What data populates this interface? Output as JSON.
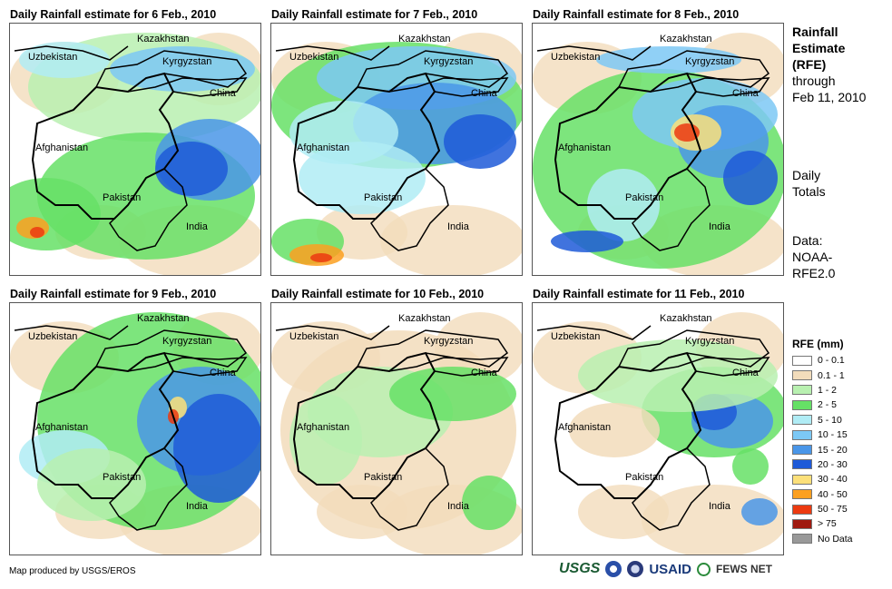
{
  "panels": [
    {
      "title": "Daily Rainfall estimate for 6 Feb., 2010",
      "blob": "b1"
    },
    {
      "title": "Daily Rainfall estimate for 7 Feb., 2010",
      "blob": "b2"
    },
    {
      "title": "Daily Rainfall estimate for 8 Feb., 2010",
      "blob": "b3"
    },
    {
      "title": "Daily Rainfall estimate for 9 Feb., 2010",
      "blob": "b4"
    },
    {
      "title": "Daily Rainfall estimate for 10 Feb., 2010",
      "blob": "b5"
    },
    {
      "title": "Daily Rainfall estimate for 11 Feb., 2010",
      "blob": "b6"
    }
  ],
  "country_labels": {
    "kazakhstan": "Kazakhstan",
    "uzbekistan": "Uzbekistan",
    "kyrgyzstan": "Kyrgyzstan",
    "china": "China",
    "afghanistan": "Afghanistan",
    "pakistan": "Pakistan",
    "india": "India"
  },
  "side": {
    "title_lines": [
      "Rainfall",
      "Estimate",
      "(RFE)"
    ],
    "through_lines": [
      "through",
      "Feb 11, 2010"
    ],
    "totals_lines": [
      "Daily",
      "Totals"
    ],
    "data_lines": [
      "Data:",
      "NOAA-",
      "RFE2.0"
    ]
  },
  "legend": {
    "title": "RFE (mm)",
    "items": [
      {
        "label": "0 - 0.1",
        "color": "#ffffff"
      },
      {
        "label": "0.1 - 1",
        "color": "#f2dcbb"
      },
      {
        "label": "1 - 2",
        "color": "#b8f0b0"
      },
      {
        "label": "2 - 5",
        "color": "#66e066"
      },
      {
        "label": "5 - 10",
        "color": "#b0ecf5"
      },
      {
        "label": "10 - 15",
        "color": "#7cc8f5"
      },
      {
        "label": "15 - 20",
        "color": "#4a96e8"
      },
      {
        "label": "20 - 30",
        "color": "#1e5ad8"
      },
      {
        "label": "30 - 40",
        "color": "#fce07a"
      },
      {
        "label": "40 - 50",
        "color": "#fca020"
      },
      {
        "label": "50 - 75",
        "color": "#ec3a10"
      },
      {
        "label": "> 75",
        "color": "#a01a10"
      },
      {
        "label": "No Data",
        "color": "#999999"
      }
    ]
  },
  "credit": "Map produced by USGS/EROS",
  "logos": {
    "usgs": "USGS",
    "usaid": "USAID",
    "fews": "FEWS NET"
  }
}
